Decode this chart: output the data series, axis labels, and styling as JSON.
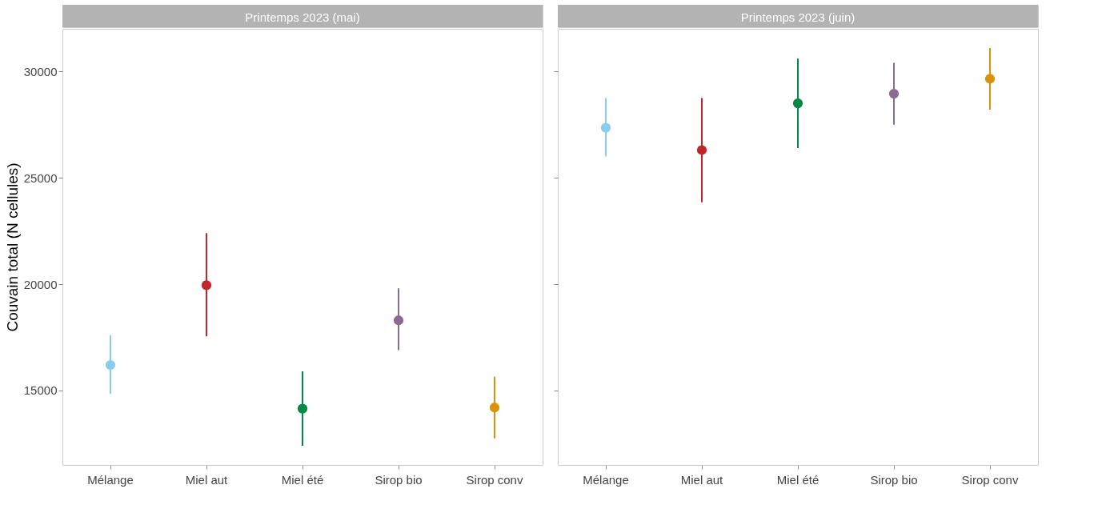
{
  "chart_data": [
    {
      "type": "scatter",
      "title": "Printemps 2023 (mai)",
      "ylabel": "Couvain total (N cellules)",
      "categories": [
        "Mélange",
        "Miel aut",
        "Miel été",
        "Sirop bio",
        "Sirop conv"
      ],
      "values": [
        16200,
        19950,
        14150,
        18300,
        14200
      ],
      "errors": [
        [
          14850,
          17600
        ],
        [
          17550,
          22400
        ],
        [
          12400,
          15900
        ],
        [
          16900,
          19800
        ],
        [
          12750,
          15650
        ]
      ],
      "colors": [
        "#88ccee",
        "#c0262c",
        "#008a45",
        "#8c6a96",
        "#dc9208"
      ],
      "ylim": [
        11500,
        32000
      ],
      "yticks": [
        15000,
        20000,
        25000,
        30000
      ],
      "grid": false,
      "legend": false,
      "marker": "circle"
    },
    {
      "type": "scatter",
      "title": "Printemps 2023 (juin)",
      "categories": [
        "Mélange",
        "Miel aut",
        "Miel été",
        "Sirop bio",
        "Sirop conv"
      ],
      "values": [
        27350,
        26300,
        28500,
        28950,
        29650
      ],
      "errors": [
        [
          26000,
          28750
        ],
        [
          23850,
          28750
        ],
        [
          26400,
          30600
        ],
        [
          27500,
          30400
        ],
        [
          28200,
          31100
        ]
      ],
      "colors": [
        "#88ccee",
        "#c0262c",
        "#008a45",
        "#8c6a96",
        "#dc9208"
      ],
      "ylim": [
        11500,
        32000
      ],
      "yticks": [
        15000,
        20000,
        25000,
        30000
      ],
      "grid": false,
      "legend": false,
      "marker": "circle",
      "tick_labels": "x"
    }
  ]
}
